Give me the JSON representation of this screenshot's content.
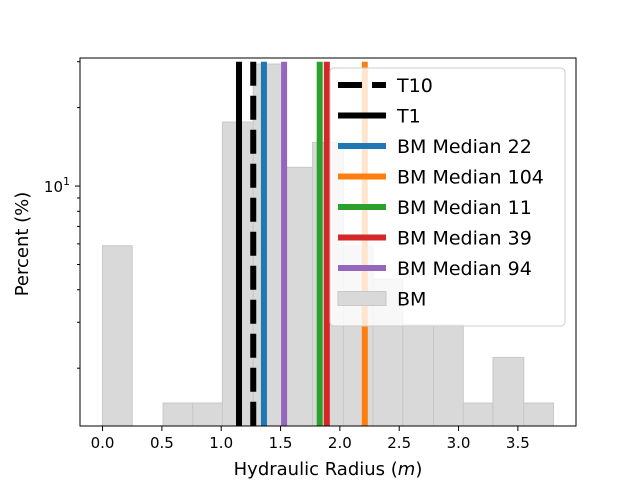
{
  "chart_data": {
    "type": "bar",
    "xlabel": "Hydraulic Radius (m)",
    "xlabel_parts": {
      "prefix": "Hydraulic Radius (",
      "var": "m",
      "suffix": ")"
    },
    "ylabel": "Percent (%)",
    "xlim": [
      -0.19,
      3.99
    ],
    "ylim": [
      1.2,
      31
    ],
    "yscale": "log",
    "grid": false,
    "legend_position": "upper right",
    "x_ticks": [
      {
        "value": 0.0,
        "label": "0.0"
      },
      {
        "value": 0.5,
        "label": "0.5"
      },
      {
        "value": 1.0,
        "label": "1.0"
      },
      {
        "value": 1.5,
        "label": "1.5"
      },
      {
        "value": 2.0,
        "label": "2.0"
      },
      {
        "value": 2.5,
        "label": "2.5"
      },
      {
        "value": 3.0,
        "label": "3.0"
      },
      {
        "value": 3.5,
        "label": "3.5"
      }
    ],
    "y_ticks": [
      {
        "value": 10,
        "base": "10",
        "exp": "1"
      }
    ],
    "histogram": {
      "name": "BM",
      "color": "#d9d9d9",
      "edge_color": "#c8c8c8",
      "bins": [
        {
          "x0": 0.0,
          "x1": 0.25,
          "value": 5.9
        },
        {
          "x0": 0.25,
          "x1": 0.51,
          "value": 0
        },
        {
          "x0": 0.51,
          "x1": 0.76,
          "value": 1.47
        },
        {
          "x0": 0.76,
          "x1": 1.01,
          "value": 1.47
        },
        {
          "x0": 1.01,
          "x1": 1.27,
          "value": 17.6
        },
        {
          "x0": 1.27,
          "x1": 1.52,
          "value": 29.4
        },
        {
          "x0": 1.52,
          "x1": 1.77,
          "value": 11.8
        },
        {
          "x0": 1.77,
          "x1": 2.03,
          "value": 14.7
        },
        {
          "x0": 2.03,
          "x1": 2.28,
          "value": 5.9
        },
        {
          "x0": 2.28,
          "x1": 2.53,
          "value": 4.4
        },
        {
          "x0": 2.53,
          "x1": 2.79,
          "value": 2.94
        },
        {
          "x0": 2.79,
          "x1": 3.04,
          "value": 2.94
        },
        {
          "x0": 3.04,
          "x1": 3.29,
          "value": 1.47
        },
        {
          "x0": 3.29,
          "x1": 3.55,
          "value": 2.2
        },
        {
          "x0": 3.55,
          "x1": 3.8,
          "value": 1.47
        }
      ]
    },
    "vlines": [
      {
        "name": "T10",
        "x": 1.27,
        "color": "#000000",
        "style": "dashed"
      },
      {
        "name": "T1",
        "x": 1.15,
        "color": "#000000",
        "style": "solid"
      },
      {
        "name": "BM Median 22",
        "x": 1.36,
        "color": "#1f77b4",
        "style": "solid"
      },
      {
        "name": "BM Median 104",
        "x": 2.21,
        "color": "#ff7f0e",
        "style": "solid"
      },
      {
        "name": "BM Median 11",
        "x": 1.83,
        "color": "#2ca02c",
        "style": "solid"
      },
      {
        "name": "BM Median 39",
        "x": 1.89,
        "color": "#d62728",
        "style": "solid"
      },
      {
        "name": "BM Median 94",
        "x": 1.53,
        "color": "#9467bd",
        "style": "solid"
      }
    ],
    "vline_top": 30,
    "legend": [
      {
        "label": "T10",
        "kind": "dashed",
        "color": "#000000"
      },
      {
        "label": "T1",
        "kind": "line",
        "color": "#000000"
      },
      {
        "label": "BM Median 22",
        "kind": "line",
        "color": "#1f77b4"
      },
      {
        "label": "BM Median 104",
        "kind": "line",
        "color": "#ff7f0e"
      },
      {
        "label": "BM Median 11",
        "kind": "line",
        "color": "#2ca02c"
      },
      {
        "label": "BM Median 39",
        "kind": "line",
        "color": "#d62728"
      },
      {
        "label": "BM Median 94",
        "kind": "line",
        "color": "#9467bd"
      },
      {
        "label": "BM",
        "kind": "patch",
        "color": "#d9d9d9"
      }
    ]
  }
}
